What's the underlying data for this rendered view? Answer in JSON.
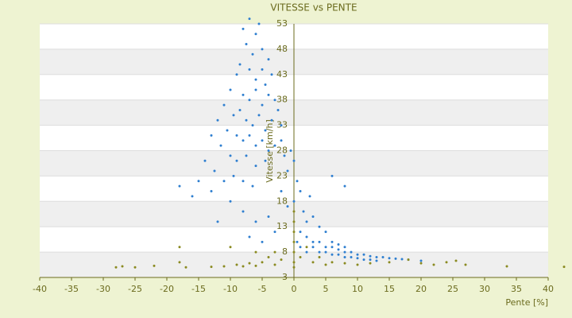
{
  "chart_data": {
    "type": "scatter",
    "title": "VITESSE vs PENTE",
    "x_label": "Pente [%]",
    "y_label": "Vitesse [km/h]",
    "xlim": [
      -40,
      40
    ],
    "xticks": [
      -40,
      -35,
      -30,
      -25,
      -20,
      -15,
      -10,
      -5,
      0,
      5,
      10,
      15,
      20,
      25,
      30,
      35,
      40
    ],
    "ylim": [
      3,
      53
    ],
    "yticks": [
      3,
      8,
      13,
      18,
      23,
      28,
      33,
      38,
      43,
      48,
      53
    ],
    "grid": true,
    "series": [
      {
        "color": "#2f7fd0",
        "x": [
          -8,
          -7,
          -6,
          -5.5,
          -7.5,
          -6.5,
          -5,
          -4,
          -8.5,
          -9,
          -7,
          -6,
          -5,
          -4.5,
          -3.5,
          -10,
          -8,
          -7,
          -6,
          -5,
          -4,
          -3,
          -2.5,
          -11,
          -9.5,
          -8.5,
          -7.5,
          -6.5,
          -5.5,
          -4.5,
          -3.5,
          -2,
          -12,
          -10.5,
          -9,
          -8,
          -7,
          -6,
          -5,
          -4,
          -3,
          -2,
          -1.5,
          -13,
          -11.5,
          -10,
          -9,
          -7.5,
          -6,
          -4.5,
          -14,
          -12.5,
          -11,
          -9.5,
          -8,
          -6.5,
          -15,
          -13,
          -18,
          -16,
          -10,
          -8,
          -6,
          -4,
          -12,
          -5,
          -7,
          -3,
          -2,
          -1,
          -0.5,
          0,
          0.5,
          1,
          -1,
          0,
          1.5,
          2,
          2.5,
          3,
          6,
          8,
          4,
          5,
          1,
          2,
          3,
          4,
          5,
          6,
          7,
          8,
          9,
          10,
          11,
          12,
          13,
          14,
          15,
          16,
          17,
          18,
          20,
          3,
          4,
          5,
          6,
          7,
          8,
          9,
          10,
          2,
          1,
          0.5,
          11,
          12,
          13,
          6,
          7,
          8
        ],
        "values": [
          52,
          54,
          51,
          53,
          49,
          47,
          48,
          46,
          45,
          43,
          44,
          42,
          44,
          41,
          43,
          40,
          39,
          38,
          40,
          37,
          39,
          38,
          36,
          37,
          35,
          36,
          34,
          33,
          35,
          32,
          34,
          33,
          34,
          32,
          31,
          30,
          31,
          29,
          30,
          28,
          29,
          30,
          27,
          31,
          29,
          27,
          26,
          27,
          25,
          26,
          26,
          24,
          22,
          23,
          22,
          21,
          22,
          20,
          21,
          19,
          18,
          16,
          14,
          15,
          14,
          10,
          11,
          12,
          20,
          24,
          28,
          26,
          22,
          20,
          17,
          18,
          16,
          14,
          19,
          15,
          23,
          21,
          13,
          12,
          12,
          11,
          10,
          10,
          9,
          9,
          8.5,
          8,
          8,
          7.5,
          7.5,
          7.2,
          7,
          7,
          6.8,
          6.7,
          6.6,
          6.5,
          6.3,
          9,
          8,
          8,
          7.5,
          7.5,
          7,
          7,
          6.8,
          8,
          9,
          10,
          6.5,
          6.5,
          6.3,
          10,
          9.5,
          9
        ]
      },
      {
        "color": "#8a8a20",
        "x": [
          -28,
          -27,
          -25,
          -22,
          -18,
          -17,
          -13,
          -11,
          -9,
          -8,
          -7,
          -6,
          -5,
          -4,
          -3,
          -2,
          -18,
          -10,
          -6,
          -3,
          0,
          0,
          0,
          0,
          0,
          0,
          0,
          1,
          2,
          3,
          4,
          5,
          6,
          8,
          10,
          12,
          15,
          18,
          20,
          22,
          24,
          25.5,
          27,
          33.5,
          42.5
        ],
        "values": [
          5,
          5.2,
          5,
          5.3,
          6,
          5,
          5.1,
          5.2,
          5.5,
          5.2,
          5.8,
          5.3,
          6,
          7,
          5.5,
          6.5,
          9,
          9,
          8,
          8,
          6,
          8,
          10,
          12,
          14,
          16,
          5,
          7,
          9,
          6,
          7,
          5.5,
          6,
          5.8,
          5.5,
          5.8,
          6,
          6.5,
          5.8,
          5.5,
          6,
          6.3,
          5.5,
          5.2,
          5.1
        ]
      }
    ]
  }
}
